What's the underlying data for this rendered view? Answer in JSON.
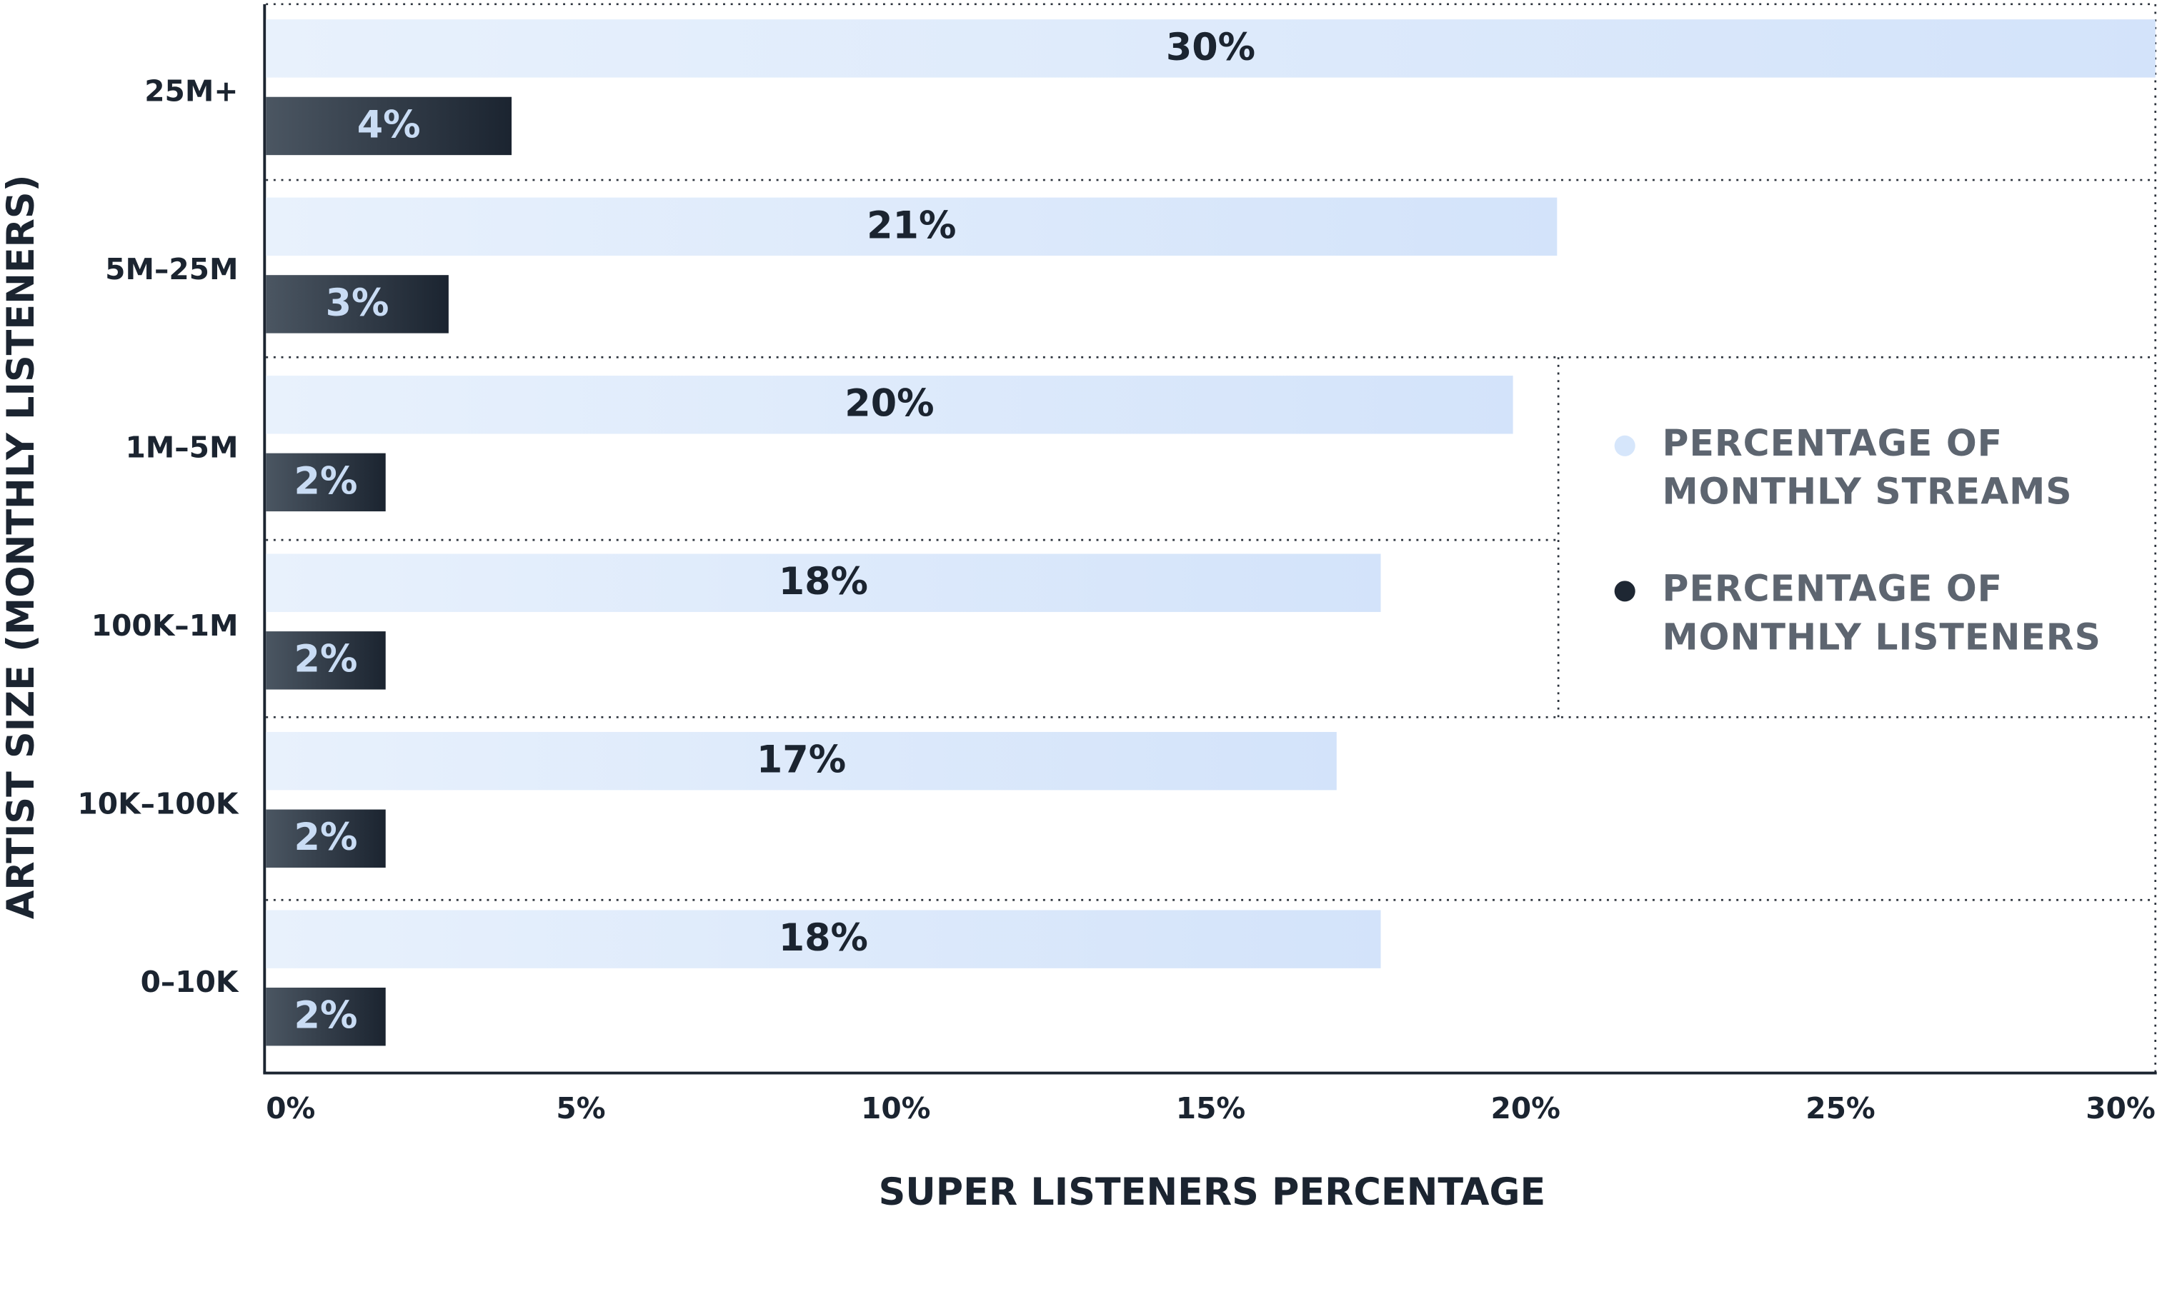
{
  "chart_data": {
    "type": "bar",
    "orientation": "horizontal",
    "x_label": "SUPER LISTENERS PERCENTAGE",
    "y_label": "ARTIST SIZE (MONTHLY LISTENERS)",
    "categories": [
      "25M+",
      "5M–25M",
      "1M–5M",
      "100K–1M",
      "10K–100K",
      "0–10K"
    ],
    "series": [
      {
        "name": "PERCENTAGE OF MONTHLY STREAMS",
        "color": "#d6e6fb",
        "values": [
          30,
          20.5,
          19.8,
          17.7,
          17.0,
          17.7
        ],
        "value_labels": [
          "30%",
          "21%",
          "20%",
          "18%",
          "17%",
          "18%"
        ]
      },
      {
        "name": "PERCENTAGE OF MONTHLY LISTENERS",
        "color": "#1e2733",
        "values": [
          3.9,
          2.9,
          1.9,
          1.9,
          1.9,
          1.9
        ],
        "value_labels": [
          "4%",
          "3%",
          "2%",
          "2%",
          "2%",
          "2%"
        ]
      }
    ],
    "xlim": [
      0,
      30
    ],
    "xticks": [
      {
        "value": 0,
        "label": "0%"
      },
      {
        "value": 5,
        "label": "5%"
      },
      {
        "value": 10,
        "label": "10%"
      },
      {
        "value": 15,
        "label": "15%"
      },
      {
        "value": 20,
        "label": "20%"
      },
      {
        "value": 25,
        "label": "25%"
      },
      {
        "value": 30,
        "label": "30%"
      }
    ],
    "legend": "right"
  }
}
